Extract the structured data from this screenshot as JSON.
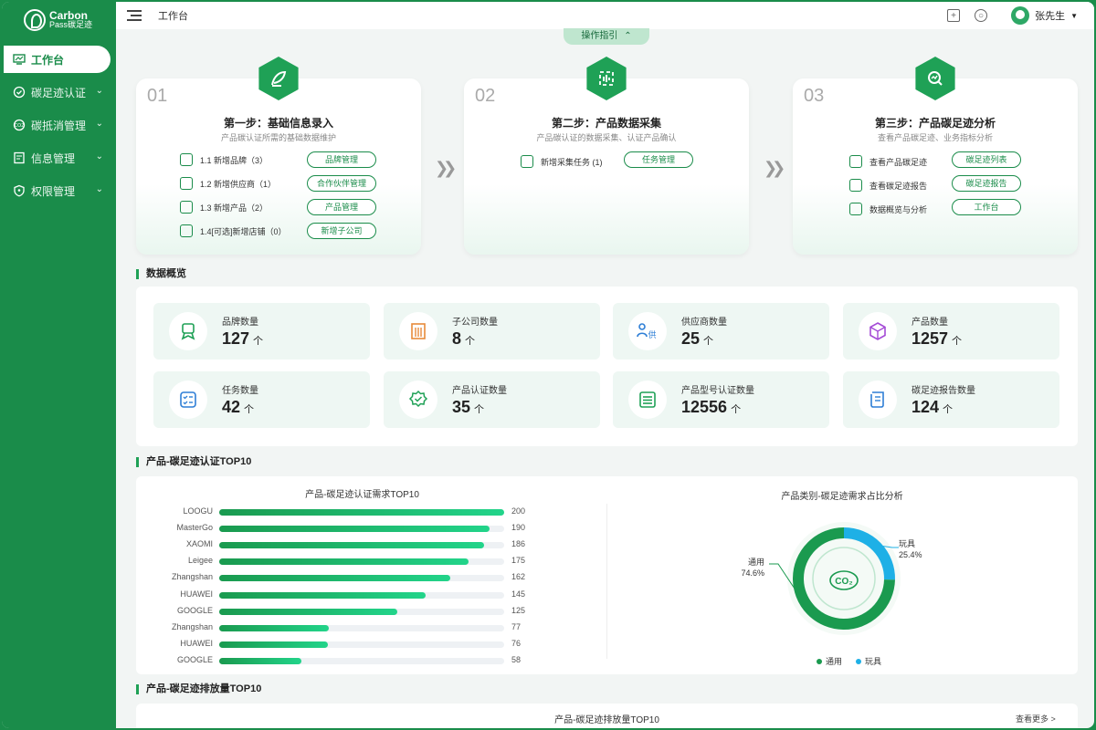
{
  "app": {
    "logo_line1": "Carbon",
    "logo_line2": "Pass碳足迹"
  },
  "sidebar": {
    "items": [
      {
        "label": "工作台",
        "icon": "monitor-icon",
        "active": true
      },
      {
        "label": "碳足迹认证",
        "icon": "badge-check-icon"
      },
      {
        "label": "碳抵消管理",
        "icon": "co2-icon"
      },
      {
        "label": "信息管理",
        "icon": "document-icon"
      },
      {
        "label": "权限管理",
        "icon": "shield-icon"
      }
    ]
  },
  "header": {
    "title": "工作台",
    "user": "张先生"
  },
  "guide_label": "操作指引",
  "steps": [
    {
      "num": "01",
      "title": "第一步：基础信息录入",
      "subtitle": "产品碳认证所需的基础数据维护",
      "rows": [
        {
          "text": "1.1 新增品牌（3）",
          "button": "品牌管理"
        },
        {
          "text": "1.2 新增供应商（1）",
          "button": "合作伙伴管理"
        },
        {
          "text": "1.3 新增产品（2）",
          "button": "产品管理"
        },
        {
          "text": "1.4[可选]新增店铺（0）",
          "button": "新增子公司"
        }
      ]
    },
    {
      "num": "02",
      "title": "第二步：产品数据采集",
      "subtitle": "产品碳认证的数据采集、认证产品确认",
      "rows": [
        {
          "text": "新增采集任务 (1)",
          "button": "任务管理"
        }
      ]
    },
    {
      "num": "03",
      "title": "第三步：产品碳足迹分析",
      "subtitle": "查看产品碳足迹、业务指标分析",
      "rows": [
        {
          "text": "查看产品碳足迹",
          "button": "碳足迹列表"
        },
        {
          "text": "查看碳足迹报告",
          "button": "碳足迹报告"
        },
        {
          "text": "数据概览与分析",
          "button": "工作台"
        }
      ]
    }
  ],
  "overview": {
    "title": "数据概览",
    "stats": [
      {
        "label": "品牌数量",
        "value": "127",
        "unit": "个",
        "icon": "brand-icon",
        "color": "#1fa156"
      },
      {
        "label": "子公司数量",
        "value": "8",
        "unit": "个",
        "icon": "building-icon",
        "color": "#e88a3a"
      },
      {
        "label": "供应商数量",
        "value": "25",
        "unit": "个",
        "icon": "supplier-icon",
        "color": "#2f7fd6"
      },
      {
        "label": "产品数量",
        "value": "1257",
        "unit": "个",
        "icon": "cube-icon",
        "color": "#a44ad6"
      },
      {
        "label": "任务数量",
        "value": "42",
        "unit": "个",
        "icon": "task-list-icon",
        "color": "#2f7fd6"
      },
      {
        "label": "产品认证数量",
        "value": "35",
        "unit": "个",
        "icon": "certified-icon",
        "color": "#1fa156"
      },
      {
        "label": "产品型号认证数量",
        "value": "12556",
        "unit": "个",
        "icon": "model-list-icon",
        "color": "#1fa156"
      },
      {
        "label": "碳足迹报告数量",
        "value": "124",
        "unit": "个",
        "icon": "report-scroll-icon",
        "color": "#2f7fd6"
      }
    ]
  },
  "top10_section_title": "产品-碳足迹认证TOP10",
  "chart_data": [
    {
      "type": "bar",
      "title": "产品-碳足迹认证需求TOP10",
      "categories": [
        "LOOGU",
        "MasterGo",
        "XAOMI",
        "Leigee",
        "Zhangshan",
        "HUAWEI",
        "GOOGLE",
        "Zhangshan",
        "HUAWEI",
        "GOOGLE"
      ],
      "values": [
        200,
        190,
        186,
        175,
        162,
        145,
        125,
        77,
        76,
        58
      ],
      "xlim": [
        0,
        200
      ],
      "orientation": "horizontal"
    },
    {
      "type": "pie",
      "title": "产品类别-碳足迹需求占比分析",
      "categories": [
        "通用",
        "玩具"
      ],
      "values": [
        74.6,
        25.4
      ],
      "labels": [
        "74.6%",
        "25.4%"
      ],
      "colors": [
        "#1a9a4f",
        "#1eb0e6"
      ],
      "center_text": "CO₂",
      "legend": "bottom"
    }
  ],
  "emission_section_title": "产品-碳足迹排放量TOP10",
  "emission_chart_title": "产品-碳足迹排放量TOP10",
  "more_link": "查看更多 >"
}
